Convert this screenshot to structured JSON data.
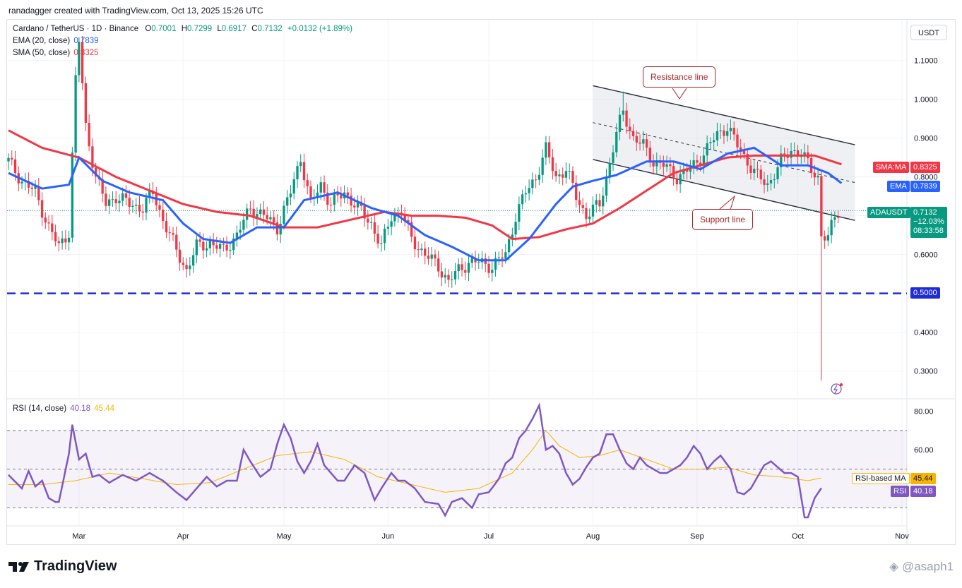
{
  "header": {
    "credit": "ranadagger created with TradingView.com, Oct 13, 2025 15:26 UTC"
  },
  "legend": {
    "symbol": "Cardano / TetherUS · 1D · Binance",
    "o_label": "O",
    "o": "0.7001",
    "h_label": "H",
    "h": "0.7299",
    "l_label": "L",
    "l": "0.6917",
    "c_label": "C",
    "c": "0.7132",
    "change": "+0.0132 (+1.89%)",
    "ema_label": "EMA (20, close)",
    "ema_value": "0.7839",
    "sma_label": "SMA (50, close)",
    "sma_value": "0.8325",
    "rsi_label": "RSI (14, close)",
    "rsi_value": "40.18",
    "rsi_ma_value": "45.44"
  },
  "currency_button": "USDT",
  "price_tags": {
    "sma_tag": "SMA:MA",
    "sma_val": "0.8325",
    "ema_tag": "EMA",
    "ema_val": "0.7839",
    "sym_tag": "ADAUSDT",
    "sym_val": "0.7132",
    "sym_change": "−12.03%",
    "sym_timer": "08:33:58",
    "support_level": "0.5000",
    "rsi_ma_tag": "RSI-based MA",
    "rsi_ma_val": "45.44",
    "rsi_tag": "RSI",
    "rsi_val": "40.18"
  },
  "annotations": {
    "resistance": "Resistance line",
    "support": "Support line"
  },
  "colors": {
    "up": "#089981",
    "down": "#f23645",
    "ema": "#2962ff",
    "sma": "#f23645",
    "rsi": "#7e57c2",
    "rsi_ma": "#f7b500",
    "support": "#1e2bd6",
    "channel": "#2a2e39"
  },
  "footer": {
    "brand": "TradingView",
    "watermark": "@asaph1"
  },
  "chart_data": {
    "type": "candlestick",
    "title": "Cardano / TetherUS · 1D · Binance",
    "y_ticks": [
      "1.1000",
      "1.0000",
      "0.9000",
      "0.8000",
      "0.7000",
      "0.6000",
      "0.5000",
      "0.4000",
      "0.3000"
    ],
    "ylim": [
      0.23,
      1.205
    ],
    "x_ticks": [
      "Mar",
      "Apr",
      "May",
      "Jun",
      "Jul",
      "Aug",
      "Sep",
      "Oct",
      "Nov"
    ],
    "x_tick_day_index": [
      21,
      52,
      82,
      113,
      143,
      174,
      205,
      235,
      266
    ],
    "day_count": 256,
    "support_level": 0.5,
    "resistance_line": [
      [
        174,
        1.035
      ],
      [
        252,
        0.883
      ]
    ],
    "support_line": [
      [
        174,
        0.845
      ],
      [
        252,
        0.688
      ]
    ],
    "ema_anchors": [
      [
        0,
        0.81
      ],
      [
        10,
        0.77
      ],
      [
        18,
        0.78
      ],
      [
        21,
        0.85
      ],
      [
        28,
        0.79
      ],
      [
        36,
        0.76
      ],
      [
        46,
        0.74
      ],
      [
        52,
        0.68
      ],
      [
        58,
        0.64
      ],
      [
        66,
        0.63
      ],
      [
        74,
        0.67
      ],
      [
        82,
        0.67
      ],
      [
        88,
        0.74
      ],
      [
        98,
        0.76
      ],
      [
        108,
        0.72
      ],
      [
        116,
        0.7
      ],
      [
        124,
        0.65
      ],
      [
        132,
        0.62
      ],
      [
        140,
        0.585
      ],
      [
        148,
        0.585
      ],
      [
        155,
        0.64
      ],
      [
        163,
        0.73
      ],
      [
        168,
        0.775
      ],
      [
        174,
        0.79
      ],
      [
        181,
        0.805
      ],
      [
        190,
        0.84
      ],
      [
        198,
        0.84
      ],
      [
        206,
        0.82
      ],
      [
        214,
        0.86
      ],
      [
        222,
        0.875
      ],
      [
        230,
        0.83
      ],
      [
        238,
        0.83
      ],
      [
        244,
        0.81
      ],
      [
        248,
        0.7839
      ]
    ],
    "sma_anchors": [
      [
        0,
        0.92
      ],
      [
        10,
        0.875
      ],
      [
        21,
        0.85
      ],
      [
        32,
        0.8
      ],
      [
        42,
        0.765
      ],
      [
        52,
        0.73
      ],
      [
        62,
        0.71
      ],
      [
        72,
        0.7
      ],
      [
        82,
        0.67
      ],
      [
        92,
        0.67
      ],
      [
        102,
        0.69
      ],
      [
        112,
        0.71
      ],
      [
        120,
        0.7
      ],
      [
        128,
        0.7
      ],
      [
        136,
        0.695
      ],
      [
        144,
        0.675
      ],
      [
        150,
        0.64
      ],
      [
        158,
        0.645
      ],
      [
        166,
        0.665
      ],
      [
        174,
        0.68
      ],
      [
        182,
        0.72
      ],
      [
        190,
        0.765
      ],
      [
        198,
        0.81
      ],
      [
        206,
        0.83
      ],
      [
        214,
        0.85
      ],
      [
        222,
        0.855
      ],
      [
        232,
        0.855
      ],
      [
        240,
        0.855
      ],
      [
        248,
        0.8325
      ]
    ],
    "price_anchors": [
      [
        0,
        0.84
      ],
      [
        4,
        0.79
      ],
      [
        8,
        0.76
      ],
      [
        12,
        0.67
      ],
      [
        15,
        0.62
      ],
      [
        18,
        0.66
      ],
      [
        20,
        1.05
      ],
      [
        21,
        1.15
      ],
      [
        23,
        0.93
      ],
      [
        26,
        0.8
      ],
      [
        29,
        0.73
      ],
      [
        32,
        0.75
      ],
      [
        36,
        0.73
      ],
      [
        40,
        0.72
      ],
      [
        43,
        0.76
      ],
      [
        46,
        0.69
      ],
      [
        50,
        0.61
      ],
      [
        53,
        0.56
      ],
      [
        56,
        0.62
      ],
      [
        60,
        0.63
      ],
      [
        64,
        0.61
      ],
      [
        68,
        0.65
      ],
      [
        72,
        0.72
      ],
      [
        76,
        0.7
      ],
      [
        80,
        0.67
      ],
      [
        84,
        0.76
      ],
      [
        87,
        0.85
      ],
      [
        90,
        0.73
      ],
      [
        93,
        0.78
      ],
      [
        96,
        0.73
      ],
      [
        100,
        0.76
      ],
      [
        104,
        0.72
      ],
      [
        108,
        0.68
      ],
      [
        111,
        0.62
      ],
      [
        114,
        0.7
      ],
      [
        117,
        0.71
      ],
      [
        120,
        0.64
      ],
      [
        124,
        0.6
      ],
      [
        128,
        0.57
      ],
      [
        131,
        0.53
      ],
      [
        134,
        0.56
      ],
      [
        137,
        0.58
      ],
      [
        140,
        0.58
      ],
      [
        144,
        0.57
      ],
      [
        148,
        0.6
      ],
      [
        151,
        0.7
      ],
      [
        154,
        0.76
      ],
      [
        157,
        0.8
      ],
      [
        160,
        0.87
      ],
      [
        163,
        0.8
      ],
      [
        166,
        0.82
      ],
      [
        169,
        0.75
      ],
      [
        172,
        0.7
      ],
      [
        176,
        0.73
      ],
      [
        178,
        0.8
      ],
      [
        181,
        0.91
      ],
      [
        183,
        0.97
      ],
      [
        186,
        0.9
      ],
      [
        189,
        0.88
      ],
      [
        192,
        0.84
      ],
      [
        195,
        0.83
      ],
      [
        199,
        0.8
      ],
      [
        203,
        0.82
      ],
      [
        207,
        0.86
      ],
      [
        211,
        0.91
      ],
      [
        214,
        0.93
      ],
      [
        217,
        0.88
      ],
      [
        220,
        0.84
      ],
      [
        223,
        0.8
      ],
      [
        226,
        0.78
      ],
      [
        230,
        0.84
      ],
      [
        233,
        0.87
      ],
      [
        236,
        0.86
      ],
      [
        239,
        0.82
      ],
      [
        241,
        0.8
      ],
      [
        242,
        0.65
      ],
      [
        244,
        0.64
      ],
      [
        246,
        0.7
      ],
      [
        247,
        0.7132
      ]
    ],
    "rsi_ticks": [
      "80.00",
      "60.00"
    ],
    "rsi_ylim": [
      21,
      86
    ],
    "rsi_band": [
      30,
      70
    ],
    "rsi_anchors": [
      [
        0,
        47
      ],
      [
        4,
        40
      ],
      [
        6,
        49
      ],
      [
        8,
        41
      ],
      [
        10,
        44
      ],
      [
        12,
        35
      ],
      [
        14,
        33
      ],
      [
        15,
        33
      ],
      [
        18,
        58
      ],
      [
        19,
        73
      ],
      [
        21,
        55
      ],
      [
        23,
        58
      ],
      [
        25,
        46
      ],
      [
        27,
        47
      ],
      [
        30,
        43
      ],
      [
        34,
        47
      ],
      [
        38,
        44
      ],
      [
        42,
        48
      ],
      [
        46,
        44
      ],
      [
        50,
        38
      ],
      [
        53,
        34
      ],
      [
        56,
        40
      ],
      [
        59,
        46
      ],
      [
        62,
        41
      ],
      [
        65,
        44
      ],
      [
        68,
        44
      ],
      [
        70,
        60
      ],
      [
        72,
        54
      ],
      [
        75,
        46
      ],
      [
        78,
        50
      ],
      [
        80,
        63
      ],
      [
        82,
        73
      ],
      [
        84,
        66
      ],
      [
        86,
        54
      ],
      [
        88,
        48
      ],
      [
        90,
        54
      ],
      [
        92,
        63
      ],
      [
        94,
        52
      ],
      [
        96,
        48
      ],
      [
        98,
        44
      ],
      [
        100,
        44
      ],
      [
        103,
        52
      ],
      [
        106,
        48
      ],
      [
        109,
        34
      ],
      [
        111,
        40
      ],
      [
        114,
        48
      ],
      [
        116,
        44
      ],
      [
        118,
        44
      ],
      [
        121,
        40
      ],
      [
        124,
        33
      ],
      [
        128,
        32
      ],
      [
        130,
        26
      ],
      [
        132,
        33
      ],
      [
        135,
        35
      ],
      [
        138,
        30
      ],
      [
        140,
        37
      ],
      [
        143,
        38
      ],
      [
        146,
        45
      ],
      [
        148,
        53
      ],
      [
        150,
        56
      ],
      [
        152,
        66
      ],
      [
        154,
        70
      ],
      [
        156,
        76
      ],
      [
        158,
        83
      ],
      [
        160,
        60
      ],
      [
        162,
        62
      ],
      [
        164,
        58
      ],
      [
        166,
        48
      ],
      [
        168,
        42
      ],
      [
        170,
        45
      ],
      [
        172,
        51
      ],
      [
        174,
        56
      ],
      [
        176,
        58
      ],
      [
        178,
        68
      ],
      [
        180,
        68
      ],
      [
        182,
        60
      ],
      [
        184,
        53
      ],
      [
        186,
        50
      ],
      [
        188,
        56
      ],
      [
        190,
        52
      ],
      [
        192,
        50
      ],
      [
        194,
        48
      ],
      [
        196,
        48
      ],
      [
        198,
        50
      ],
      [
        200,
        52
      ],
      [
        202,
        56
      ],
      [
        204,
        62
      ],
      [
        206,
        58
      ],
      [
        208,
        50
      ],
      [
        210,
        54
      ],
      [
        212,
        57
      ],
      [
        215,
        50
      ],
      [
        217,
        38
      ],
      [
        219,
        37
      ],
      [
        221,
        40
      ],
      [
        223,
        46
      ],
      [
        225,
        52
      ],
      [
        227,
        54
      ],
      [
        229,
        51
      ],
      [
        231,
        48
      ],
      [
        233,
        48
      ],
      [
        235,
        46
      ],
      [
        237,
        25
      ],
      [
        238,
        25
      ],
      [
        240,
        35
      ],
      [
        242,
        40.18
      ]
    ],
    "rsi_ma_anchors": [
      [
        0,
        42
      ],
      [
        10,
        42
      ],
      [
        20,
        44
      ],
      [
        30,
        48
      ],
      [
        40,
        45
      ],
      [
        50,
        42
      ],
      [
        60,
        43
      ],
      [
        70,
        50
      ],
      [
        80,
        57
      ],
      [
        90,
        59
      ],
      [
        100,
        55
      ],
      [
        110,
        46
      ],
      [
        120,
        42
      ],
      [
        130,
        38
      ],
      [
        140,
        40
      ],
      [
        150,
        48
      ],
      [
        156,
        60
      ],
      [
        160,
        70
      ],
      [
        164,
        62
      ],
      [
        170,
        56
      ],
      [
        176,
        57
      ],
      [
        182,
        60
      ],
      [
        190,
        55
      ],
      [
        198,
        50
      ],
      [
        206,
        50
      ],
      [
        214,
        51
      ],
      [
        222,
        47
      ],
      [
        230,
        46
      ],
      [
        238,
        44
      ],
      [
        242,
        45.44
      ]
    ]
  }
}
